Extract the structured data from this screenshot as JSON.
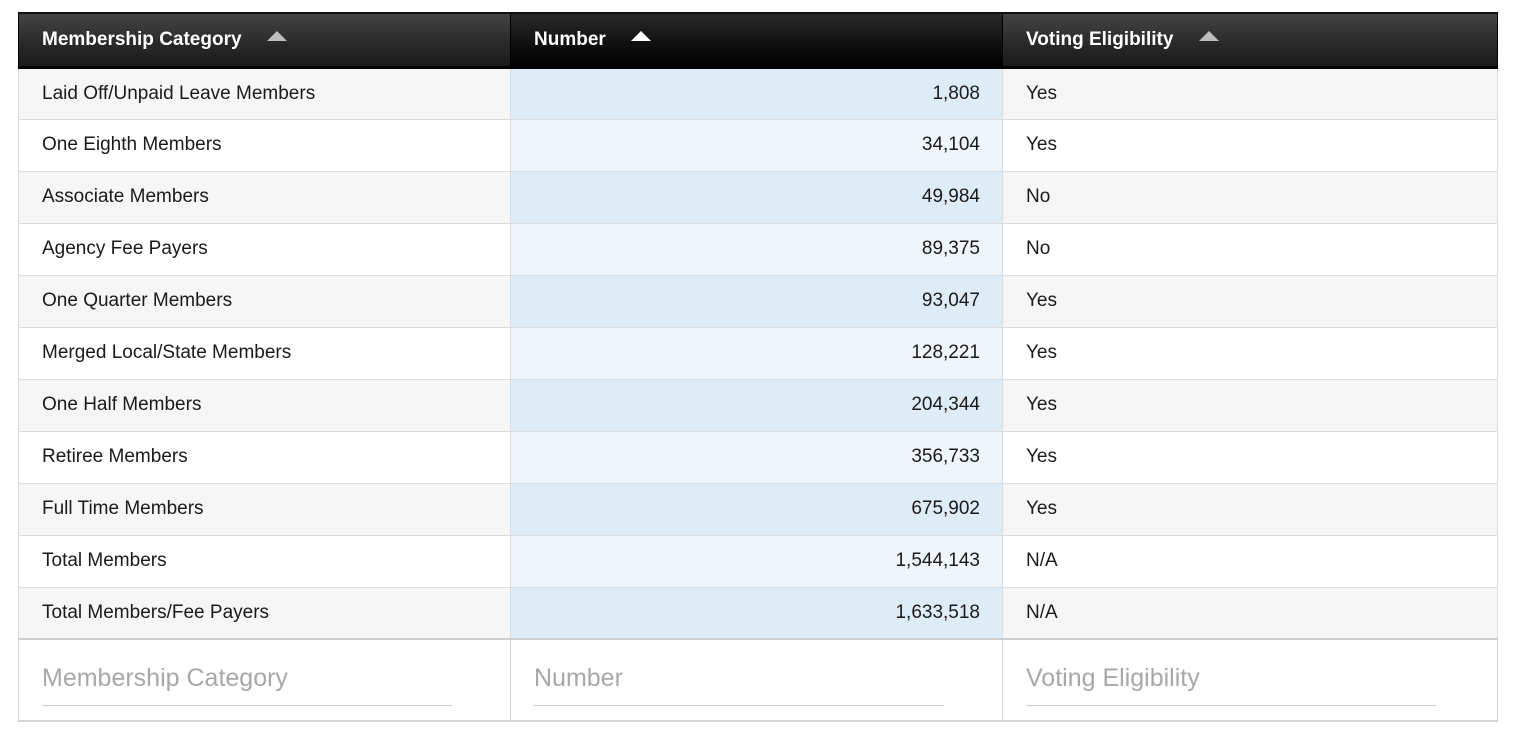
{
  "columns": [
    {
      "label": "Membership Category",
      "sort": "asc"
    },
    {
      "label": "Number",
      "sort": "asc"
    },
    {
      "label": "Voting Eligibility",
      "sort": "asc"
    }
  ],
  "rows": [
    {
      "category": "Laid Off/Unpaid Leave Members",
      "number": "1,808",
      "voting": "Yes"
    },
    {
      "category": "One Eighth Members",
      "number": "34,104",
      "voting": "Yes"
    },
    {
      "category": "Associate Members",
      "number": "49,984",
      "voting": "No"
    },
    {
      "category": "Agency Fee Payers",
      "number": "89,375",
      "voting": "No"
    },
    {
      "category": "One Quarter Members",
      "number": "93,047",
      "voting": "Yes"
    },
    {
      "category": "Merged Local/State Members",
      "number": "128,221",
      "voting": "Yes"
    },
    {
      "category": "One Half Members",
      "number": "204,344",
      "voting": "Yes"
    },
    {
      "category": "Retiree Members",
      "number": "356,733",
      "voting": "Yes"
    },
    {
      "category": "Full Time Members",
      "number": "675,902",
      "voting": "Yes"
    },
    {
      "category": "Total Members",
      "number": "1,544,143",
      "voting": "N/A"
    },
    {
      "category": "Total Members/Fee Payers",
      "number": "1,633,518",
      "voting": "N/A"
    }
  ],
  "filters": {
    "category_placeholder": "Membership Category",
    "number_placeholder": "Number",
    "voting_placeholder": "Voting Eligibility",
    "category_value": "",
    "number_value": "",
    "voting_value": ""
  },
  "colors": {
    "header_bg": "#2a2a2a",
    "active_header_bg": "#000000",
    "number_column_tint": "#ddecf7",
    "sort_arrow_active": "#ffffff",
    "sort_arrow_inactive": "#bdbdbd"
  },
  "icons": {
    "sort": "sort-ascending-icon"
  }
}
